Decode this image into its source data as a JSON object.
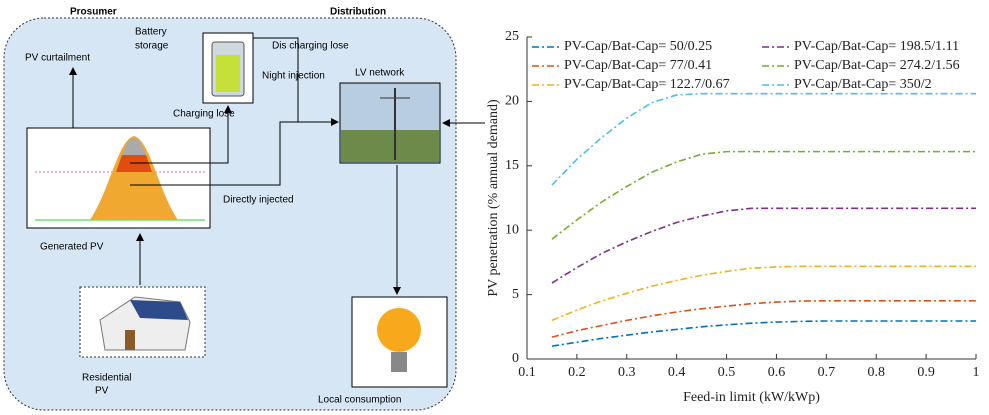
{
  "diagram": {
    "prosumer": "Prosumer",
    "distribution": "Distribution",
    "battery": [
      "Battery",
      "storage"
    ],
    "discharging": "Dis charging lose",
    "night": "Night injection",
    "lv": "LV network",
    "curtailment": "PV curtailment",
    "charging": "Charging lose",
    "direct": "Directly injected",
    "generated": "Generated PV",
    "residential": [
      "Residential",
      "PV"
    ],
    "local": "Local consumption"
  },
  "chart_data": {
    "type": "line",
    "xlabel": "Feed-in limit (kW/kWp)",
    "ylabel": "PV penetration (% annual demand)",
    "x": [
      0.15,
      0.2,
      0.25,
      0.3,
      0.35,
      0.4,
      0.45,
      0.5,
      0.55,
      0.6,
      0.65,
      0.7,
      0.75,
      0.8,
      0.85,
      0.9,
      0.95,
      1.0
    ],
    "series": [
      {
        "name": "PV-Cap/Bat-Cap= 50/0.25",
        "color": "#0072bd",
        "values": [
          1.0,
          1.3,
          1.6,
          1.85,
          2.1,
          2.3,
          2.5,
          2.65,
          2.78,
          2.87,
          2.92,
          2.95,
          2.95,
          2.95,
          2.95,
          2.95,
          2.95,
          2.95
        ]
      },
      {
        "name": "PV-Cap/Bat-Cap= 77/0.41",
        "color": "#d95319",
        "values": [
          1.7,
          2.2,
          2.6,
          3.0,
          3.35,
          3.65,
          3.9,
          4.1,
          4.3,
          4.42,
          4.5,
          4.52,
          4.52,
          4.52,
          4.52,
          4.52,
          4.52,
          4.52
        ]
      },
      {
        "name": "PV-Cap/Bat-Cap= 122.7/0.67",
        "color": "#edb120",
        "values": [
          3.0,
          3.8,
          4.5,
          5.1,
          5.65,
          6.1,
          6.5,
          6.8,
          7.05,
          7.15,
          7.2,
          7.2,
          7.2,
          7.2,
          7.2,
          7.2,
          7.2,
          7.2
        ]
      },
      {
        "name": "PV-Cap/Bat-Cap= 198.5/1.11",
        "color": "#7e2f8e",
        "values": [
          5.9,
          7.1,
          8.2,
          9.1,
          9.9,
          10.6,
          11.1,
          11.5,
          11.7,
          11.7,
          11.7,
          11.7,
          11.7,
          11.7,
          11.7,
          11.7,
          11.7,
          11.7
        ]
      },
      {
        "name": "PV-Cap/Bat-Cap= 274.2/1.56",
        "color": "#77ac30",
        "values": [
          9.3,
          10.8,
          12.2,
          13.4,
          14.5,
          15.3,
          15.9,
          16.1,
          16.1,
          16.1,
          16.1,
          16.1,
          16.1,
          16.1,
          16.1,
          16.1,
          16.1,
          16.1
        ]
      },
      {
        "name": "PV-Cap/Bat-Cap= 350/2",
        "color": "#4dbeee",
        "values": [
          13.5,
          15.5,
          17.2,
          18.7,
          19.9,
          20.5,
          20.6,
          20.6,
          20.6,
          20.6,
          20.6,
          20.6,
          20.6,
          20.6,
          20.6,
          20.6,
          20.6,
          20.6
        ]
      }
    ],
    "xlim": [
      0.1,
      1
    ],
    "xticks": [
      0.1,
      0.2,
      0.3,
      0.4,
      0.5,
      0.6,
      0.7,
      0.8,
      0.9,
      1
    ],
    "ylim": [
      0,
      25
    ],
    "yticks": [
      0,
      5,
      10,
      15,
      20,
      25
    ],
    "legend": "upper left",
    "dashed": true
  }
}
